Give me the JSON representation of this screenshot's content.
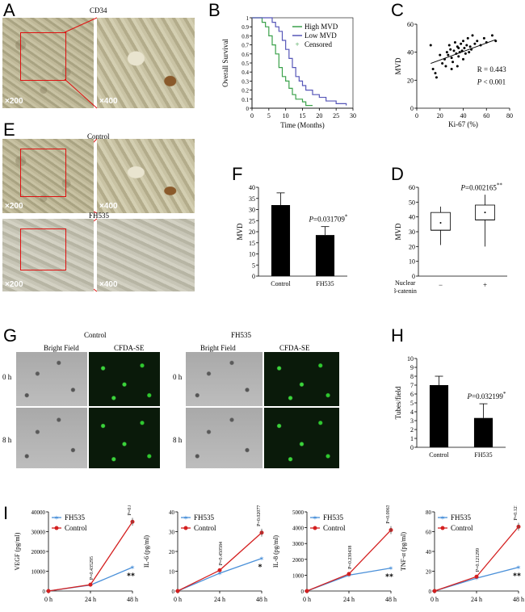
{
  "panels": {
    "A": {
      "label": "A",
      "title": "CD34",
      "mag_low": "×200",
      "mag_high": "×400"
    },
    "B": {
      "label": "B"
    },
    "C": {
      "label": "C"
    },
    "D": {
      "label": "D"
    },
    "E": {
      "label": "E",
      "control": "Control",
      "treat": "FH535",
      "mag_low": "×200",
      "mag_high": "×400"
    },
    "F": {
      "label": "F"
    },
    "G": {
      "label": "G",
      "control": "Control",
      "treat": "FH535",
      "bright": "Bright Field",
      "cfda": "CFDA-SE",
      "t0": "0 h",
      "t8": "8 h"
    },
    "H": {
      "label": "H"
    },
    "I": {
      "label": "I"
    }
  },
  "chart_data": [
    {
      "id": "B",
      "type": "line",
      "xlabel": "Time (Months)",
      "ylabel": "Overall Survival",
      "xlim": [
        0,
        30
      ],
      "ylim": [
        0,
        1
      ],
      "xticks": [
        0,
        5,
        10,
        15,
        20,
        25,
        30
      ],
      "yticks": [
        0,
        0.1,
        0.2,
        0.3,
        0.4,
        0.5,
        0.6,
        0.7,
        0.8,
        0.9,
        1
      ],
      "legend": [
        "High MVD",
        "Low MVD",
        "Censored"
      ],
      "series": [
        {
          "name": "High MVD",
          "color": "#3aa14a",
          "x": [
            0,
            3,
            4,
            5,
            6,
            7,
            8,
            9,
            10,
            11,
            12,
            13,
            15,
            16,
            18
          ],
          "y": [
            1,
            0.95,
            0.9,
            0.8,
            0.7,
            0.6,
            0.45,
            0.35,
            0.3,
            0.22,
            0.15,
            0.1,
            0.07,
            0.03,
            0.03
          ]
        },
        {
          "name": "Low MVD",
          "color": "#5656b8",
          "x": [
            0,
            6,
            7,
            8,
            9,
            10,
            11,
            12,
            13,
            14,
            15,
            16,
            18,
            20,
            22,
            25,
            28
          ],
          "y": [
            1,
            0.95,
            0.9,
            0.85,
            0.75,
            0.65,
            0.55,
            0.45,
            0.35,
            0.3,
            0.25,
            0.2,
            0.15,
            0.12,
            0.08,
            0.05,
            0.03
          ]
        }
      ]
    },
    {
      "id": "C",
      "type": "scatter",
      "xlabel": "Ki-67 (%)",
      "ylabel": "MVD",
      "xlim": [
        0,
        80
      ],
      "ylim": [
        0,
        60
      ],
      "xticks": [
        0,
        20,
        40,
        60,
        80
      ],
      "yticks": [
        0,
        20,
        40,
        60
      ],
      "annotation_r": "R = 0.443",
      "annotation_p_label": "P",
      "annotation_p_value": " < 0.001",
      "points": [
        [
          12,
          45
        ],
        [
          14,
          28
        ],
        [
          16,
          25
        ],
        [
          17,
          22
        ],
        [
          20,
          38
        ],
        [
          22,
          32
        ],
        [
          24,
          35
        ],
        [
          25,
          30
        ],
        [
          26,
          40
        ],
        [
          27,
          38
        ],
        [
          28,
          45
        ],
        [
          29,
          42
        ],
        [
          30,
          36
        ],
        [
          31,
          33
        ],
        [
          32,
          41
        ],
        [
          33,
          47
        ],
        [
          34,
          39
        ],
        [
          35,
          44
        ],
        [
          36,
          37
        ],
        [
          36,
          43
        ],
        [
          37,
          40
        ],
        [
          38,
          46
        ],
        [
          39,
          41
        ],
        [
          40,
          35
        ],
        [
          40,
          48
        ],
        [
          41,
          43
        ],
        [
          42,
          39
        ],
        [
          43,
          45
        ],
        [
          44,
          50
        ],
        [
          45,
          40
        ],
        [
          46,
          44
        ],
        [
          47,
          42
        ],
        [
          48,
          52
        ],
        [
          50,
          46
        ],
        [
          52,
          48
        ],
        [
          55,
          45
        ],
        [
          58,
          50
        ],
        [
          60,
          47
        ],
        [
          65,
          52
        ],
        [
          68,
          48
        ],
        [
          35,
          30
        ],
        [
          30,
          28
        ]
      ],
      "fit": [
        [
          12,
          32
        ],
        [
          68,
          49
        ]
      ]
    },
    {
      "id": "F",
      "type": "bar",
      "ylabel": "MVD",
      "categories": [
        "Control",
        "FH535"
      ],
      "values": [
        32,
        18.5
      ],
      "errors": [
        5.5,
        3.8
      ],
      "ylim": [
        0,
        40
      ],
      "yticks": [
        0,
        5,
        10,
        15,
        20,
        25,
        30,
        35,
        40
      ],
      "p_label": "P",
      "p_text": "=0.031709",
      "star": "*"
    },
    {
      "id": "D",
      "type": "box",
      "ylabel": "MVD",
      "ylim": [
        0,
        60
      ],
      "yticks": [
        0,
        10,
        20,
        30,
        40,
        50,
        60
      ],
      "categories": [
        "−",
        "+"
      ],
      "row_label_1": "Nuclear",
      "row_label_2": "β-catenin",
      "boxes": [
        {
          "min": 21,
          "q1": 31,
          "median": 31,
          "q3": 43,
          "max": 47,
          "mean": 36
        },
        {
          "min": 20,
          "q1": 38,
          "median": 38,
          "q3": 48,
          "max": 55,
          "mean": 43
        }
      ],
      "p_label": "P",
      "p_text": "=0.002165",
      "star": "**"
    },
    {
      "id": "H",
      "type": "bar",
      "ylabel": "Tubes/field",
      "categories": [
        "Control",
        "FH535"
      ],
      "values": [
        7,
        3.3
      ],
      "errors": [
        1,
        1.6
      ],
      "ylim": [
        0,
        10
      ],
      "yticks": [
        0,
        1,
        2,
        3,
        4,
        5,
        6,
        7,
        8,
        9,
        10
      ],
      "p_label": "P",
      "p_text": "=0.032199",
      "star": "*"
    },
    {
      "id": "I1",
      "type": "line",
      "ylabel": "VEGF (pg/ml)",
      "categories": [
        "0 h",
        "24 h",
        "48 h"
      ],
      "ylim": [
        0,
        40000
      ],
      "yticks": [
        0,
        10000,
        20000,
        30000,
        40000
      ],
      "series": [
        {
          "name": "FH535",
          "color": "#4a90d9",
          "values": [
            0,
            3000,
            12000
          ]
        },
        {
          "name": "Control",
          "color": "#d42020",
          "values": [
            0,
            3200,
            35000
          ]
        }
      ],
      "p24": "P=0.435295",
      "p48": "P=0.01557",
      "star": "**"
    },
    {
      "id": "I2",
      "type": "line",
      "ylabel": "IL-6 (pg/ml)",
      "categories": [
        "0 h",
        "24 h",
        "48 h"
      ],
      "ylim": [
        0,
        40
      ],
      "yticks": [
        0,
        10,
        20,
        30,
        40
      ],
      "series": [
        {
          "name": "FH535",
          "color": "#4a90d9",
          "values": [
            0,
            9,
            16.5
          ]
        },
        {
          "name": "Control",
          "color": "#d42020",
          "values": [
            0,
            10.5,
            29.5
          ]
        }
      ],
      "p24": "P=0.450584",
      "p48": "P=0.020773",
      "star": "*"
    },
    {
      "id": "I3",
      "type": "line",
      "ylabel": "IL-8 (pg/ml)",
      "categories": [
        "0 h",
        "24 h",
        "48 h"
      ],
      "ylim": [
        0,
        5000
      ],
      "yticks": [
        0,
        1000,
        2000,
        3000,
        4000,
        5000
      ],
      "series": [
        {
          "name": "FH535",
          "color": "#4a90d9",
          "values": [
            0,
            1000,
            1450
          ]
        },
        {
          "name": "Control",
          "color": "#d42020",
          "values": [
            0,
            1080,
            3850
          ]
        }
      ],
      "p24": "P=0.230438",
      "p48": "P=0.006314",
      "star": "**"
    },
    {
      "id": "I4",
      "type": "line",
      "ylabel": "TNF-α (pg/ml)",
      "categories": [
        "0 h",
        "24 h",
        "48 h"
      ],
      "ylim": [
        0,
        80
      ],
      "yticks": [
        0,
        20,
        40,
        60,
        80
      ],
      "series": [
        {
          "name": "FH535",
          "color": "#4a90d9",
          "values": [
            0,
            13,
            24
          ]
        },
        {
          "name": "Control",
          "color": "#d42020",
          "values": [
            0,
            14.5,
            65
          ]
        }
      ],
      "p24": "P=0.121299",
      "p48": "P=0.121299",
      "star": "**"
    }
  ]
}
